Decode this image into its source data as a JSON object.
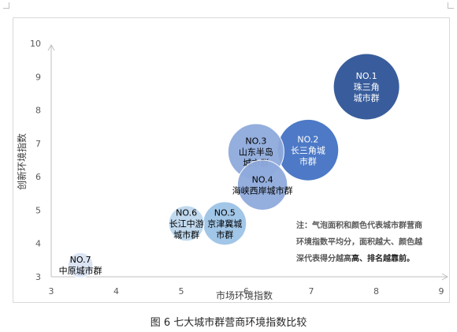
{
  "chart_data": {
    "type": "scatter",
    "xlabel": "市场环境指数",
    "ylabel": "创新环境指数",
    "xlim": [
      3,
      9
    ],
    "ylim": [
      3,
      10
    ],
    "xticks": [
      "3",
      "4",
      "5",
      "6",
      "7",
      "8",
      "9"
    ],
    "yticks": [
      "3",
      "4",
      "5",
      "6",
      "7",
      "8",
      "9",
      "10"
    ],
    "grid": false,
    "series": [
      {
        "rank": "NO.1",
        "name": "珠三角城市群",
        "label_lines": [
          "珠三角",
          "城市群"
        ],
        "x": 7.85,
        "y": 8.7,
        "bubble": 7,
        "color": "#2f5597",
        "text_color": "#ffffff"
      },
      {
        "rank": "NO.2",
        "name": "长三角城市群",
        "label_lines": [
          "长三角城",
          "市群"
        ],
        "x": 6.95,
        "y": 6.8,
        "bubble": 6,
        "color": "#4472c4",
        "text_color": "#ffffff"
      },
      {
        "rank": "NO.3",
        "name": "山东半岛城市群",
        "label_lines": [
          "山东半岛",
          "城市群"
        ],
        "x": 6.15,
        "y": 6.75,
        "bubble": 5,
        "color": "#8faadc",
        "text_color": "#000000"
      },
      {
        "rank": "NO.4",
        "name": "海峡西岸城市群",
        "label_lines": [
          "海峡西岸城市群"
        ],
        "x": 6.25,
        "y": 5.75,
        "bubble": 4,
        "color": "#8faadc",
        "text_color": "#000000"
      },
      {
        "rank": "NO.5",
        "name": "京津冀城市群",
        "label_lines": [
          "京津冀城",
          "市群"
        ],
        "x": 5.67,
        "y": 4.6,
        "bubble": 3,
        "color": "#9dc3e6",
        "text_color": "#000000"
      },
      {
        "rank": "NO.6",
        "name": "长江中游城市群",
        "label_lines": [
          "长江中游",
          "城市群"
        ],
        "x": 5.08,
        "y": 4.6,
        "bubble": 2,
        "color": "#bdd7ee",
        "text_color": "#000000"
      },
      {
        "rank": "NO.7",
        "name": "中原城市群",
        "label_lines": [
          "中原城市群"
        ],
        "x": 3.45,
        "y": 3.35,
        "bubble": 1,
        "color": "#dae3f3",
        "text_color": "#000000"
      }
    ]
  },
  "note": {
    "line1": "注：气泡面积和颜色代表城市群营商",
    "line2": "环境指数平均分，面积越大、颜色越",
    "line3_a": "深代表得分越高",
    "line3_b": "高、排名越靠前。"
  },
  "caption": "图 6  七大城市群营商环境指数比较"
}
